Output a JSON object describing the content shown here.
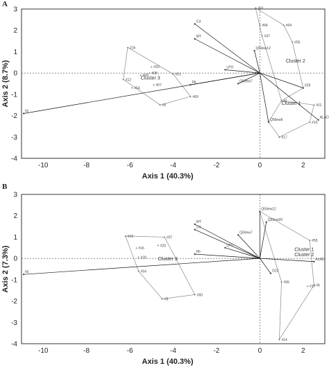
{
  "chart_data": [
    {
      "type": "scatter",
      "panel": "A",
      "xlabel": "Axis 1 (40.3%)",
      "ylabel": "Axis 2 (8.7%)",
      "xlim": [
        -11,
        3
      ],
      "ylim": [
        -4,
        3
      ],
      "xticks": [
        -10,
        -8,
        -6,
        -4,
        -2,
        0,
        2
      ],
      "yticks": [
        -4,
        -3,
        -2,
        -1,
        0,
        1,
        2,
        3
      ],
      "loadings": [
        {
          "label": "Ni",
          "x": -10.9,
          "y": -1.9
        },
        {
          "label": "Cd",
          "x": -3.0,
          "y": 2.3
        },
        {
          "label": "MT",
          "x": -3.0,
          "y": 1.6
        },
        {
          "label": "Q59A_ew12",
          "x": -0.25,
          "y": 1.05
        },
        {
          "label": "LPO",
          "x": -1.6,
          "y": 0.15
        },
        {
          "label": "Pb",
          "x": -3.2,
          "y": -0.55
        },
        {
          "label": "Q59A_ew7",
          "x": -1.0,
          "y": -0.5
        },
        {
          "label": "Q59A_ew9",
          "x": 0.4,
          "y": -2.3
        },
        {
          "label": "ALAD",
          "x": 2.7,
          "y": -2.2
        },
        {
          "label": "#28",
          "x": 2.0,
          "y": -0.7
        }
      ],
      "cluster_labels": [
        {
          "label": "Cluster 3",
          "x": -5.5,
          "y": -0.3
        },
        {
          "label": "Cluster 2",
          "x": 1.2,
          "y": 0.5
        },
        {
          "label": "Cluster 1",
          "x": 1.0,
          "y": -1.5
        }
      ],
      "points": [
        {
          "label": "#16",
          "x": -6.1,
          "y": 1.2
        },
        {
          "label": "#20",
          "x": -5.0,
          "y": 0.3
        },
        {
          "label": "#08",
          "x": -5.1,
          "y": 0.0
        },
        {
          "label": "#09",
          "x": -5.5,
          "y": -0.1
        },
        {
          "label": "#12",
          "x": -6.3,
          "y": -0.3
        },
        {
          "label": "#54",
          "x": -5.9,
          "y": -0.7
        },
        {
          "label": "#07",
          "x": -4.9,
          "y": -0.55
        },
        {
          "label": "#01",
          "x": -4.0,
          "y": -0.05
        },
        {
          "label": "#5",
          "x": -4.6,
          "y": -1.5
        },
        {
          "label": "#60",
          "x": -3.2,
          "y": -1.1
        },
        {
          "label": "#62",
          "x": -0.2,
          "y": 3.05
        },
        {
          "label": "#64",
          "x": 0.0,
          "y": 2.25
        },
        {
          "label": "#04",
          "x": 1.1,
          "y": 2.25
        },
        {
          "label": "#47",
          "x": 0.1,
          "y": 1.75
        },
        {
          "label": "#55",
          "x": 1.5,
          "y": 1.45
        },
        {
          "label": "#15",
          "x": 2.3,
          "y": -2.3
        },
        {
          "label": "#17",
          "x": 0.9,
          "y": -3.0
        },
        {
          "label": "#11",
          "x": 2.5,
          "y": -1.5
        },
        {
          "label": "#1",
          "x": 1.0,
          "y": -1.3
        }
      ],
      "hulls": [
        [
          "#16",
          "#01",
          "#60",
          "#5",
          "#12"
        ],
        [
          "#62",
          "#04",
          "#55",
          "#28",
          "#1",
          "#47"
        ],
        [
          "#11",
          "#15",
          "#17",
          "Q59A_ew9",
          "#1"
        ]
      ]
    },
    {
      "type": "scatter",
      "panel": "B",
      "xlabel": "Axis 1 (40.3%)",
      "ylabel": "Axis 2 (7.3%)",
      "xlim": [
        -11,
        3
      ],
      "ylim": [
        -4,
        3
      ],
      "xticks": [
        -10,
        -8,
        -6,
        -4,
        -2,
        0,
        2
      ],
      "yticks": [
        -4,
        -3,
        -2,
        -1,
        0,
        1,
        2,
        3
      ],
      "loadings": [
        {
          "label": "Ni",
          "x": -10.9,
          "y": -0.75
        },
        {
          "label": "MT",
          "x": -3.0,
          "y": 1.6
        },
        {
          "label": "Cd",
          "x": -3.0,
          "y": 1.35
        },
        {
          "label": "Q59A_ew12",
          "x": 0.0,
          "y": 2.2
        },
        {
          "label": "Q59A_ew20",
          "x": 0.3,
          "y": 1.7
        },
        {
          "label": "Q59A_ew7",
          "x": -1.0,
          "y": 1.1
        },
        {
          "label": "LPO",
          "x": -1.6,
          "y": 0.5
        },
        {
          "label": "Pb",
          "x": -3.0,
          "y": 0.2
        },
        {
          "label": "G22",
          "x": 0.5,
          "y": -0.7
        },
        {
          "label": "ALAD",
          "x": 2.5,
          "y": -0.15
        }
      ],
      "cluster_labels": [
        {
          "label": "Cluster 3",
          "x": -4.7,
          "y": -0.1
        },
        {
          "label": "Cluster 1",
          "x": 1.6,
          "y": 0.35
        },
        {
          "label": "Cluster 2",
          "x": 1.6,
          "y": 0.1
        }
      ],
      "points": [
        {
          "label": "#12",
          "x": -6.2,
          "y": 1.05
        },
        {
          "label": "#07",
          "x": -4.4,
          "y": 1.0
        },
        {
          "label": "#16",
          "x": -5.7,
          "y": 0.5
        },
        {
          "label": "#20",
          "x": -4.7,
          "y": 0.6
        },
        {
          "label": "#29",
          "x": -5.6,
          "y": 0.05
        },
        {
          "label": "#54",
          "x": -5.6,
          "y": -0.6
        },
        {
          "label": "#5",
          "x": -4.5,
          "y": -1.9
        },
        {
          "label": "#60",
          "x": -3.0,
          "y": -1.7
        },
        {
          "label": "#55",
          "x": 2.3,
          "y": 0.85
        },
        {
          "label": "#65",
          "x": 1.0,
          "y": -1.1
        },
        {
          "label": "#17",
          "x": 2.2,
          "y": -1.3
        },
        {
          "label": "#6",
          "x": 2.5,
          "y": -1.25
        },
        {
          "label": "#14",
          "x": 0.9,
          "y": -3.8
        }
      ],
      "hulls": [
        [
          "#12",
          "#07",
          "#60",
          "#5",
          "#54"
        ],
        [
          "Q59A_ew12",
          "#55",
          "#6",
          "#14",
          "#65"
        ]
      ]
    }
  ]
}
